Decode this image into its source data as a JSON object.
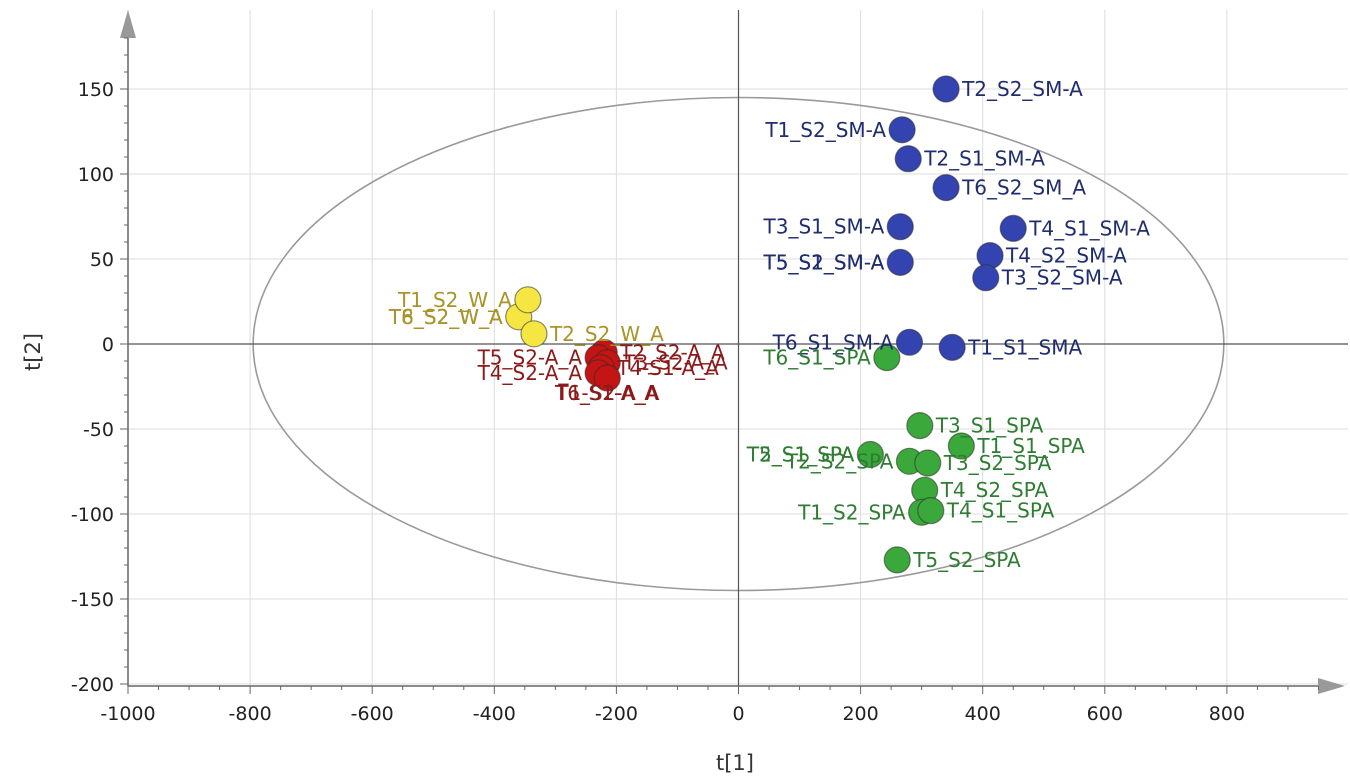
{
  "chart_data": {
    "type": "scatter",
    "xlabel": "t[1]",
    "ylabel": "t[2]",
    "xlim": [
      -1000,
      1000
    ],
    "ylim": [
      -200,
      190
    ],
    "xticks": [
      -1000,
      -800,
      -600,
      -400,
      -200,
      0,
      200,
      400,
      600,
      800
    ],
    "yticks": [
      -200,
      -150,
      -100,
      -50,
      0,
      50,
      100,
      150
    ],
    "grid": true,
    "ellipse": {
      "center": [
        0,
        0
      ],
      "rx": 795,
      "ry": 145
    },
    "groups": [
      {
        "color": "#3344b0",
        "label_color": "#1f2d6e",
        "points": [
          {
            "x": 340,
            "y": 150,
            "label": "T2_S2_SM-A",
            "anchor": "start"
          },
          {
            "x": 268,
            "y": 126,
            "label": "T1_S2_SM-A",
            "anchor": "end"
          },
          {
            "x": 278,
            "y": 109,
            "label": "T2_S1_SM-A",
            "anchor": "start"
          },
          {
            "x": 340,
            "y": 92,
            "label": "T6_S2_SM_A",
            "anchor": "start"
          },
          {
            "x": 265,
            "y": 69,
            "label": "T3_S1_SM-A",
            "anchor": "end"
          },
          {
            "x": 450,
            "y": 68,
            "label": "T4_S1_SM-A",
            "anchor": "start"
          },
          {
            "x": 412,
            "y": 52,
            "label": "T4_S2_SM-A",
            "anchor": "start"
          },
          {
            "x": 265,
            "y": 48,
            "label": "T5_S1_SM-A",
            "anchor": "end"
          },
          {
            "x": 265,
            "y": 48,
            "label": "T5_S2_SM-A",
            "anchor": "end"
          },
          {
            "x": 405,
            "y": 39,
            "label": "T3_S2_SM-A",
            "anchor": "start"
          },
          {
            "x": 280,
            "y": 1,
            "label": "T6_S1_SM-A",
            "anchor": "end"
          },
          {
            "x": 350,
            "y": -2,
            "label": "T1_S1_SMA",
            "anchor": "start"
          }
        ]
      },
      {
        "color": "#3aa83a",
        "label_color": "#2e7d32",
        "points": [
          {
            "x": 243,
            "y": -8,
            "label": "T6_S1_SPA",
            "anchor": "end"
          },
          {
            "x": 297,
            "y": -48,
            "label": "T3_S1_SPA",
            "anchor": "start"
          },
          {
            "x": 365,
            "y": -60,
            "label": "T1_S1_SPA",
            "anchor": "start"
          },
          {
            "x": 216,
            "y": -65,
            "label": "T2_S1_SPA",
            "anchor": "end"
          },
          {
            "x": 216,
            "y": -65,
            "label": "T5_S1_SPA",
            "anchor": "end"
          },
          {
            "x": 280,
            "y": -69,
            "label": "T2_S2_SPA",
            "anchor": "end"
          },
          {
            "x": 310,
            "y": -70,
            "label": "T3_S2_SPA",
            "anchor": "start"
          },
          {
            "x": 305,
            "y": -86,
            "label": "T4_S2_SPA",
            "anchor": "start"
          },
          {
            "x": 300,
            "y": -99,
            "label": "T1_S2_SPA",
            "anchor": "end"
          },
          {
            "x": 315,
            "y": -98,
            "label": "T4_S1_SPA",
            "anchor": "start"
          },
          {
            "x": 260,
            "y": -127,
            "label": "T5_S2_SPA",
            "anchor": "start"
          }
        ]
      },
      {
        "color": "#f5e642",
        "label_color": "#a89428",
        "points": [
          {
            "x": -360,
            "y": 16,
            "label": "T8_S2_W_A",
            "anchor": "end"
          },
          {
            "x": -360,
            "y": 16,
            "label": "T6_S2_W_A",
            "anchor": "end"
          },
          {
            "x": -335,
            "y": 6,
            "label": "T2_S2_W_A",
            "anchor": "start"
          },
          {
            "x": -345,
            "y": 26,
            "label": "T1_S2_W_A",
            "anchor": "end"
          }
        ]
      },
      {
        "color": "#c41414",
        "label_color": "#8b1a1a",
        "points": [
          {
            "x": -220,
            "y": -5,
            "label": "T2_S2-A_A",
            "anchor": "start"
          },
          {
            "x": -230,
            "y": -8,
            "label": "T5_S2-A_A",
            "anchor": "end"
          },
          {
            "x": -215,
            "y": -11,
            "label": "T3_S2-A_A",
            "anchor": "start"
          },
          {
            "x": -225,
            "y": -14,
            "label": "T4-S1-A_A",
            "anchor": "start"
          },
          {
            "x": -230,
            "y": -17,
            "label": "T4_S2-A_A",
            "anchor": "end"
          },
          {
            "x": -215,
            "y": -20,
            "label": "T6_S2-A_A",
            "anchor": "middle"
          },
          {
            "x": -215,
            "y": -20,
            "label": "T1-S1-A_A",
            "anchor": "middle"
          }
        ]
      }
    ]
  }
}
